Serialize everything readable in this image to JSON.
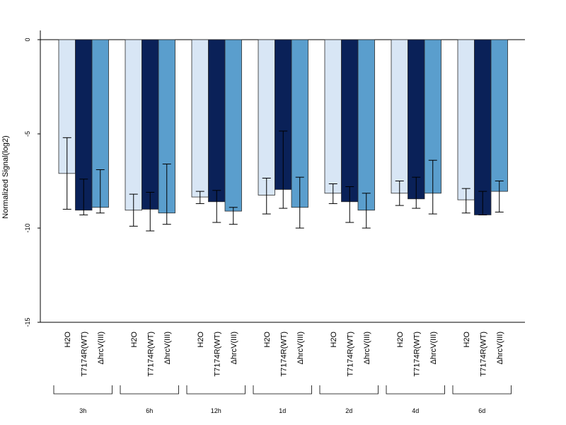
{
  "chart_data": {
    "type": "bar",
    "ylabel": "Normalized Signal(log2)",
    "ylim": [
      -15,
      0
    ],
    "yticks": [
      0,
      -5,
      -10,
      -15
    ],
    "grid": false,
    "colors": {
      "H2O": "#d8e6f5",
      "T7174R(WT)": "#0a2158",
      "ΔhrcV(III)": "#5a9ecd"
    },
    "series_names": [
      "H2O",
      "T7174R(WT)",
      "ΔhrcV(III)"
    ],
    "groups": [
      {
        "label": "3h",
        "values": [
          -7.1,
          -9.05,
          -8.9
        ],
        "errors": [
          [
            -9.0,
            -5.2
          ],
          [
            -9.3,
            -7.4
          ],
          [
            -9.2,
            -6.9
          ]
        ]
      },
      {
        "label": "6h",
        "values": [
          -9.05,
          -9.0,
          -9.2
        ],
        "errors": [
          [
            -9.9,
            -8.2
          ],
          [
            -10.15,
            -8.1
          ],
          [
            -9.8,
            -6.6
          ]
        ]
      },
      {
        "label": "12h",
        "values": [
          -8.35,
          -8.6,
          -9.1
        ],
        "errors": [
          [
            -8.7,
            -8.05
          ],
          [
            -9.7,
            -8.0
          ],
          [
            -9.8,
            -8.9
          ]
        ]
      },
      {
        "label": "1d",
        "values": [
          -8.25,
          -7.95,
          -8.9
        ],
        "errors": [
          [
            -9.25,
            -7.35
          ],
          [
            -8.95,
            -4.85
          ],
          [
            -10.0,
            -7.3
          ]
        ]
      },
      {
        "label": "2d",
        "values": [
          -8.15,
          -8.6,
          -9.05
        ],
        "errors": [
          [
            -8.7,
            -7.65
          ],
          [
            -9.7,
            -7.8
          ],
          [
            -10.0,
            -8.15
          ]
        ]
      },
      {
        "label": "4d",
        "values": [
          -8.15,
          -8.45,
          -8.15
        ],
        "errors": [
          [
            -8.8,
            -7.5
          ],
          [
            -8.95,
            -7.3
          ],
          [
            -9.25,
            -6.4
          ]
        ]
      },
      {
        "label": "6d",
        "values": [
          -8.5,
          -9.3,
          -8.05
        ],
        "errors": [
          [
            -9.2,
            -7.9
          ],
          [
            -9.3,
            -8.05
          ],
          [
            -9.15,
            -7.5
          ]
        ]
      }
    ]
  }
}
